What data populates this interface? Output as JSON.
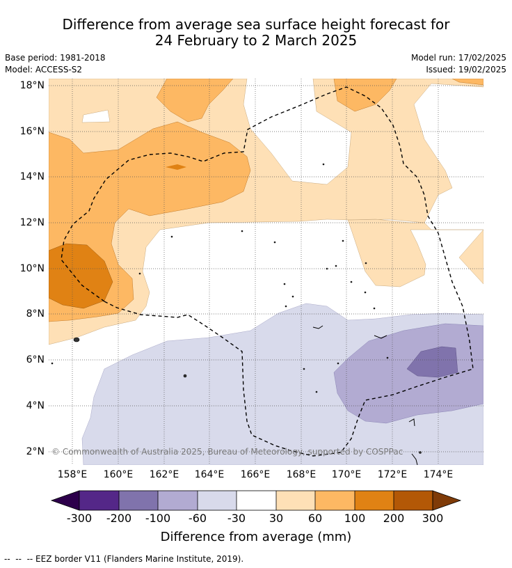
{
  "title_line1": "Difference from average sea surface height forecast for",
  "title_line2": "24 February to 2 March 2025",
  "base_period": "Base period: 1981-2018",
  "model": "Model: ACCESS-S2",
  "model_run": "Model run: 17/02/2025",
  "issued": "Issued: 19/02/2025",
  "lat_ticks": [
    "18°N",
    "16°N",
    "14°N",
    "12°N",
    "10°N",
    "8°N",
    "6°N",
    "4°N",
    "2°N"
  ],
  "lon_ticks": [
    "158°E",
    "160°E",
    "162°E",
    "164°E",
    "166°E",
    "168°E",
    "170°E",
    "172°E",
    "174°E"
  ],
  "colorbar": {
    "labels": [
      "-300",
      "-200",
      "-100",
      "-60",
      "-30",
      "30",
      "60",
      "100",
      "200",
      "300"
    ],
    "colors": [
      "#2d004b",
      "#542788",
      "#8073ac",
      "#b2abd2",
      "#d8daeb",
      "#ffffff",
      "#fee0b6",
      "#fdb863",
      "#e08214",
      "#b35806",
      "#7f3b08"
    ],
    "title": "Difference from average (mm)"
  },
  "copyright": "© Commonwealth of Australia 2025, Bureau of Meteorology, supported by COSPPac",
  "footnote": "--  --  -- EEZ border V11 (Flanders Marine Institute, 2019)."
}
